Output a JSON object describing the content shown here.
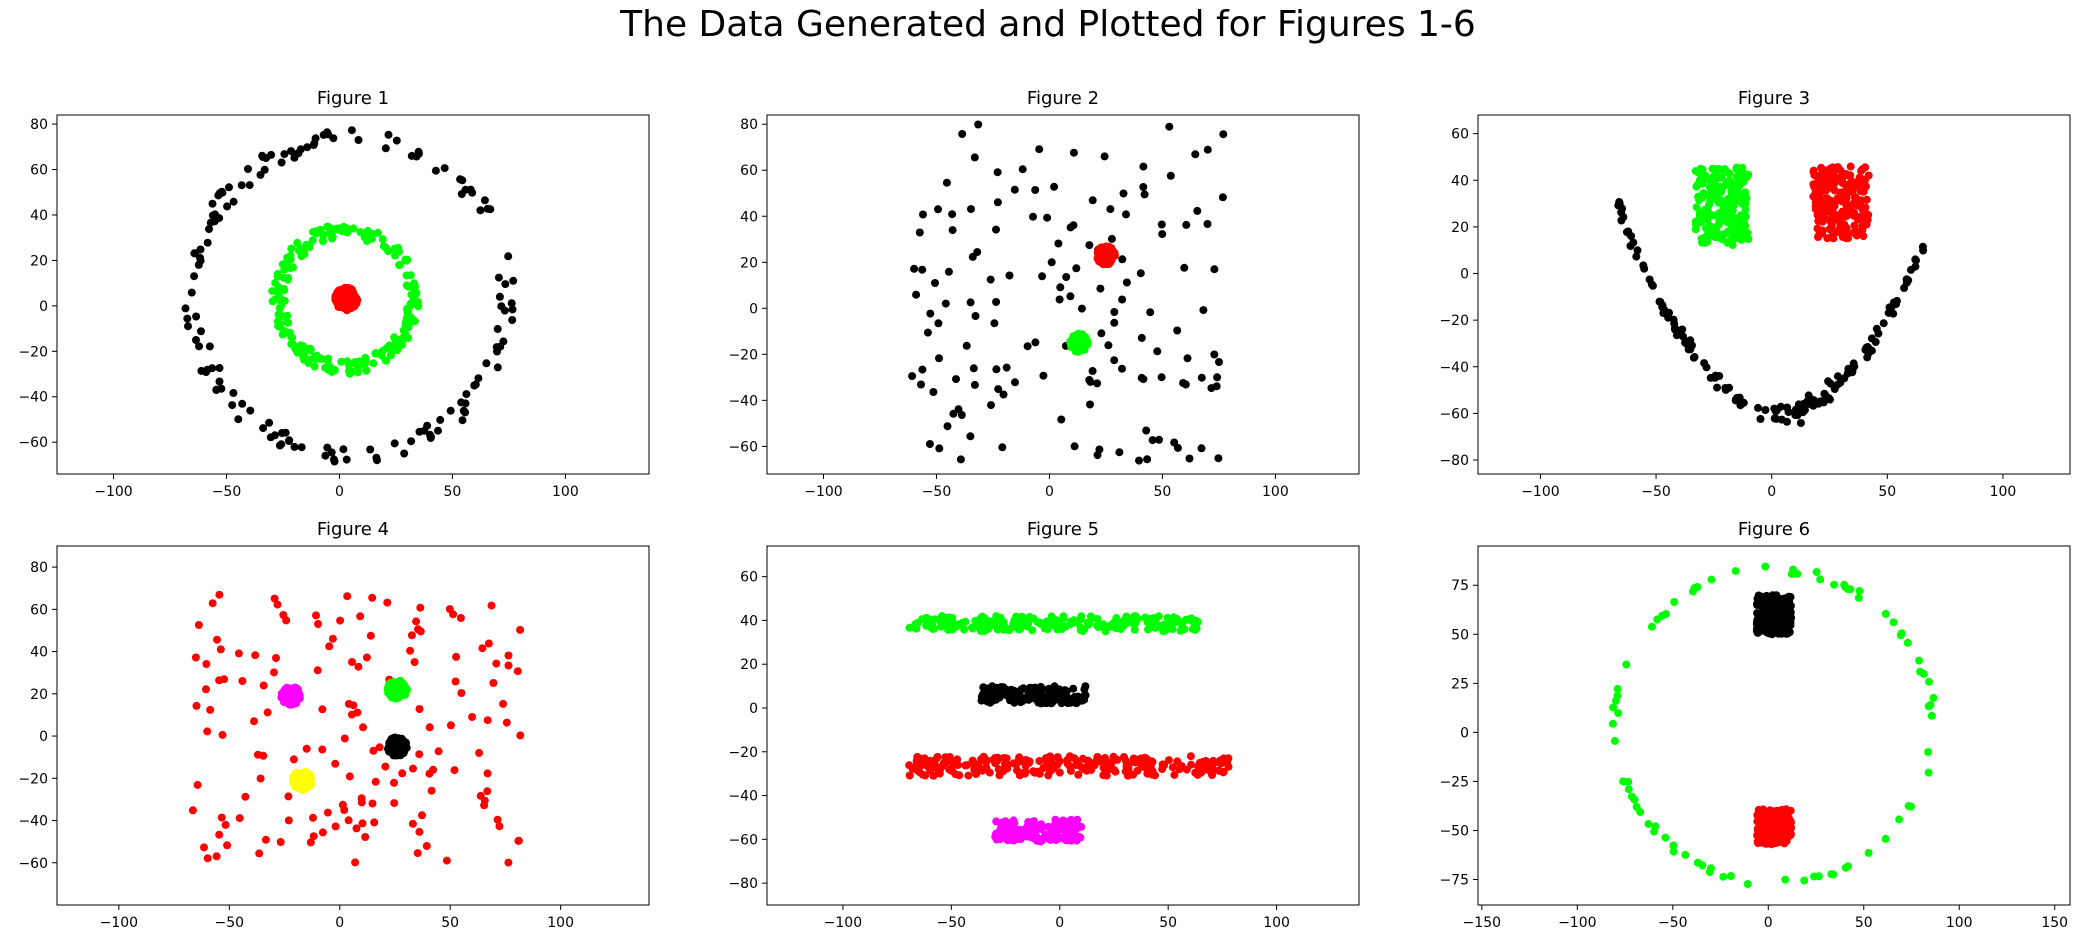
{
  "suptitle": "The Data Generated and Plotted for Figures 1-6",
  "chart_data": [
    {
      "type": "scatter",
      "title": "Figure 1",
      "xlim": [
        -125,
        137
      ],
      "ylim": [
        -74,
        84
      ],
      "xticks": [
        -100,
        -50,
        0,
        50,
        100
      ],
      "yticks": [
        -60,
        -40,
        -20,
        0,
        20,
        40,
        60,
        80
      ],
      "series": [
        {
          "color": "#000000",
          "shape": "ring",
          "cx": 5,
          "cy": 4,
          "r": 70,
          "jitter": 4,
          "count": 150
        },
        {
          "color": "#00ff00",
          "shape": "ring",
          "cx": 3,
          "cy": 3,
          "r": 30,
          "jitter": 3,
          "count": 220
        },
        {
          "color": "#ff0000",
          "shape": "disk",
          "cx": 3,
          "cy": 3,
          "r": 5,
          "count": 150
        }
      ]
    },
    {
      "type": "scatter",
      "title": "Figure 2",
      "xlim": [
        -125,
        137
      ],
      "ylim": [
        -72,
        84
      ],
      "xticks": [
        -100,
        -50,
        0,
        50,
        100
      ],
      "yticks": [
        -60,
        -40,
        -20,
        0,
        20,
        40,
        60,
        80
      ],
      "series": [
        {
          "color": "#000000",
          "shape": "box",
          "x": [
            -65,
            78
          ],
          "y": [
            -67,
            80
          ],
          "count": 150
        },
        {
          "color": "#ff0000",
          "shape": "disk",
          "cx": 25,
          "cy": 23,
          "r": 4,
          "count": 120
        },
        {
          "color": "#00ff00",
          "shape": "disk",
          "cx": 13,
          "cy": -15,
          "r": 4,
          "count": 120
        }
      ]
    },
    {
      "type": "scatter",
      "title": "Figure 3",
      "xlim": [
        -127,
        129
      ],
      "ylim": [
        -86,
        68
      ],
      "xticks": [
        -100,
        -50,
        0,
        50,
        100
      ],
      "yticks": [
        -80,
        -60,
        -40,
        -20,
        0,
        20,
        40,
        60
      ],
      "series": [
        {
          "color": "#00ff00",
          "shape": "box",
          "x": [
            -33,
            -10
          ],
          "y": [
            12,
            46
          ],
          "count": 200
        },
        {
          "color": "#ff0000",
          "shape": "box",
          "x": [
            18,
            42
          ],
          "y": [
            15,
            46
          ],
          "count": 200
        },
        {
          "color": "#000000",
          "shape": "parabola",
          "x": [
            -67,
            70
          ],
          "vx": 3,
          "vy": -60,
          "a": 0.0185,
          "jitter": 2,
          "count": 150
        }
      ]
    },
    {
      "type": "scatter",
      "title": "Figure 4",
      "xlim": [
        -128,
        140
      ],
      "ylim": [
        -80,
        90
      ],
      "xticks": [
        -100,
        -50,
        0,
        50,
        100
      ],
      "yticks": [
        -60,
        -40,
        -20,
        0,
        20,
        40,
        60,
        80
      ],
      "series": [
        {
          "color": "#ff0000",
          "shape": "box",
          "x": [
            -67,
            82
          ],
          "y": [
            -60,
            68
          ],
          "count": 150
        },
        {
          "color": "#ff00ff",
          "shape": "disk",
          "cx": -22,
          "cy": 19,
          "r": 4.5,
          "count": 100
        },
        {
          "color": "#00ff00",
          "shape": "disk",
          "cx": 26,
          "cy": 22,
          "r": 4.5,
          "count": 100
        },
        {
          "color": "#000000",
          "shape": "disk",
          "cx": 26,
          "cy": -5,
          "r": 4.5,
          "count": 100
        },
        {
          "color": "#ffff00",
          "shape": "disk",
          "cx": -17,
          "cy": -21,
          "r": 4.5,
          "count": 100
        }
      ]
    },
    {
      "type": "scatter",
      "title": "Figure 5",
      "xlim": [
        -135,
        138
      ],
      "ylim": [
        -90,
        74
      ],
      "xticks": [
        -100,
        -50,
        0,
        50,
        100
      ],
      "yticks": [
        -80,
        -60,
        -40,
        -20,
        0,
        20,
        40,
        60
      ],
      "series": [
        {
          "color": "#00ff00",
          "shape": "box",
          "x": [
            -70,
            64
          ],
          "y": [
            35,
            42
          ],
          "count": 220
        },
        {
          "color": "#000000",
          "shape": "box",
          "x": [
            -38,
            12
          ],
          "y": [
            2,
            10
          ],
          "count": 150
        },
        {
          "color": "#ff0000",
          "shape": "box",
          "x": [
            -70,
            78
          ],
          "y": [
            -31,
            -22
          ],
          "count": 250
        },
        {
          "color": "#ff00ff",
          "shape": "box",
          "x": [
            -30,
            10
          ],
          "y": [
            -61,
            -51
          ],
          "count": 150
        }
      ]
    },
    {
      "type": "scatter",
      "title": "Figure 6",
      "xlim": [
        -152,
        158
      ],
      "ylim": [
        -88,
        95
      ],
      "xticks": [
        -150,
        -100,
        -50,
        0,
        50,
        100,
        150
      ],
      "yticks": [
        -75,
        -50,
        -25,
        0,
        25,
        50,
        75
      ],
      "series": [
        {
          "color": "#00ff00",
          "shape": "ellipse",
          "cx": 3,
          "cy": 3,
          "rx": 83,
          "ry": 80,
          "jitter": 2,
          "count": 80
        },
        {
          "color": "#000000",
          "shape": "box",
          "x": [
            -6,
            12
          ],
          "y": [
            50,
            70
          ],
          "count": 220
        },
        {
          "color": "#ff0000",
          "shape": "box",
          "x": [
            -6,
            12
          ],
          "y": [
            -57,
            -39
          ],
          "count": 220
        }
      ]
    }
  ]
}
